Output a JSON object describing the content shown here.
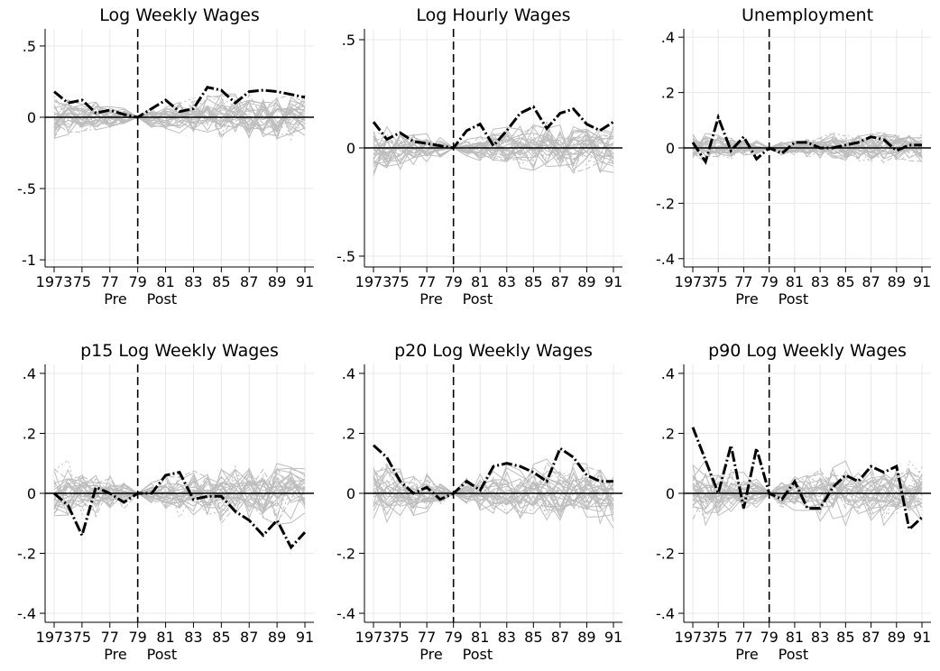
{
  "chart_data": [
    {
      "type": "line",
      "title": "Log Weekly Wages",
      "xlabel": "",
      "ylabel": "",
      "x": [
        1973,
        1974,
        1975,
        1976,
        1977,
        1978,
        1979,
        1980,
        1981,
        1982,
        1983,
        1984,
        1985,
        1986,
        1987,
        1988,
        1989,
        1990,
        1991
      ],
      "xticks": [
        "1973",
        "75",
        "77",
        "79",
        "81",
        "83",
        "85",
        "87",
        "89",
        "91"
      ],
      "xtick_values": [
        1973,
        1975,
        1977,
        1979,
        1981,
        1983,
        1985,
        1987,
        1989,
        1991
      ],
      "ylim": [
        -1.05,
        0.62
      ],
      "yticks": [
        ".5",
        "0",
        "-.5",
        "-1"
      ],
      "ytick_values": [
        0.5,
        0,
        -0.5,
        -1
      ],
      "period_labels": [
        "Pre",
        "Post"
      ],
      "event_year": 1979,
      "series": [
        {
          "values": [
            0.18,
            0.1,
            0.12,
            0.03,
            0.05,
            0.02,
            0.0,
            0.06,
            0.12,
            0.04,
            0.06,
            0.21,
            0.19,
            0.1,
            0.18,
            0.19,
            0.18,
            0.16,
            0.14
          ]
        }
      ],
      "donor_spread": 0.1
    },
    {
      "type": "line",
      "title": "Log Hourly Wages",
      "xlabel": "",
      "ylabel": "",
      "x": [
        1973,
        1974,
        1975,
        1976,
        1977,
        1978,
        1979,
        1980,
        1981,
        1982,
        1983,
        1984,
        1985,
        1986,
        1987,
        1988,
        1989,
        1990,
        1991
      ],
      "xticks": [
        "1973",
        "75",
        "77",
        "79",
        "81",
        "83",
        "85",
        "87",
        "89",
        "91"
      ],
      "xtick_values": [
        1973,
        1975,
        1977,
        1979,
        1981,
        1983,
        1985,
        1987,
        1989,
        1991
      ],
      "ylim": [
        -0.55,
        0.55
      ],
      "yticks": [
        ".5",
        "0",
        "-.5"
      ],
      "ytick_values": [
        0.5,
        0,
        -0.5
      ],
      "period_labels": [
        "Pre",
        "Post"
      ],
      "event_year": 1979,
      "series": [
        {
          "values": [
            0.12,
            0.04,
            0.07,
            0.03,
            0.02,
            0.01,
            0.0,
            0.08,
            0.11,
            0.01,
            0.08,
            0.16,
            0.19,
            0.09,
            0.16,
            0.18,
            0.11,
            0.08,
            0.12
          ]
        }
      ],
      "donor_spread": 0.08
    },
    {
      "type": "line",
      "title": "Unemployment",
      "xlabel": "",
      "ylabel": "",
      "x": [
        1973,
        1974,
        1975,
        1976,
        1977,
        1978,
        1979,
        1980,
        1981,
        1982,
        1983,
        1984,
        1985,
        1986,
        1987,
        1988,
        1989,
        1990,
        1991
      ],
      "xticks": [
        "1973",
        "75",
        "77",
        "79",
        "81",
        "83",
        "85",
        "87",
        "89",
        "91"
      ],
      "xtick_values": [
        1973,
        1975,
        1977,
        1979,
        1981,
        1983,
        1985,
        1987,
        1989,
        1991
      ],
      "ylim": [
        -0.43,
        0.43
      ],
      "yticks": [
        ".4",
        ".2",
        "0",
        "-.2",
        "-.4"
      ],
      "ytick_values": [
        0.4,
        0.2,
        0,
        -0.2,
        -0.4
      ],
      "period_labels": [
        "Pre",
        "Post"
      ],
      "event_year": 1979,
      "series": [
        {
          "values": [
            0.02,
            -0.05,
            0.11,
            -0.01,
            0.04,
            -0.04,
            0.0,
            -0.02,
            0.02,
            0.02,
            0.0,
            0.0,
            0.01,
            0.02,
            0.04,
            0.03,
            -0.01,
            0.01,
            0.01
          ]
        }
      ],
      "donor_spread": 0.04
    },
    {
      "type": "line",
      "title": "p15 Log Weekly Wages",
      "xlabel": "",
      "ylabel": "",
      "x": [
        1973,
        1974,
        1975,
        1976,
        1977,
        1978,
        1979,
        1980,
        1981,
        1982,
        1983,
        1984,
        1985,
        1986,
        1987,
        1988,
        1989,
        1990,
        1991
      ],
      "xticks": [
        "1973",
        "75",
        "77",
        "79",
        "81",
        "83",
        "85",
        "87",
        "89",
        "91"
      ],
      "xtick_values": [
        1973,
        1975,
        1977,
        1979,
        1981,
        1983,
        1985,
        1987,
        1989,
        1991
      ],
      "ylim": [
        -0.43,
        0.43
      ],
      "yticks": [
        ".4",
        ".2",
        "0",
        "-.2",
        "-.4"
      ],
      "ytick_values": [
        0.4,
        0.2,
        0,
        -0.2,
        -0.4
      ],
      "period_labels": [
        "Pre",
        "Post"
      ],
      "event_year": 1979,
      "series": [
        {
          "values": [
            0.0,
            -0.04,
            -0.14,
            0.02,
            0.0,
            -0.03,
            0.0,
            0.0,
            0.06,
            0.07,
            -0.02,
            -0.01,
            -0.01,
            -0.06,
            -0.09,
            -0.14,
            -0.09,
            -0.18,
            -0.13
          ]
        }
      ],
      "donor_spread": 0.07
    },
    {
      "type": "line",
      "title": "p20 Log Weekly Wages",
      "xlabel": "",
      "ylabel": "",
      "x": [
        1973,
        1974,
        1975,
        1976,
        1977,
        1978,
        1979,
        1980,
        1981,
        1982,
        1983,
        1984,
        1985,
        1986,
        1987,
        1988,
        1989,
        1990,
        1991
      ],
      "xticks": [
        "1973",
        "75",
        "77",
        "79",
        "81",
        "83",
        "85",
        "87",
        "89",
        "91"
      ],
      "xtick_values": [
        1973,
        1975,
        1977,
        1979,
        1981,
        1983,
        1985,
        1987,
        1989,
        1991
      ],
      "ylim": [
        -0.43,
        0.43
      ],
      "yticks": [
        ".4",
        ".2",
        "0",
        "-.2",
        "-.4"
      ],
      "ytick_values": [
        0.4,
        0.2,
        0,
        -0.2,
        -0.4
      ],
      "period_labels": [
        "Pre",
        "Post"
      ],
      "event_year": 1979,
      "series": [
        {
          "values": [
            0.16,
            0.12,
            0.04,
            0.0,
            0.02,
            -0.02,
            0.0,
            0.04,
            0.01,
            0.09,
            0.1,
            0.09,
            0.07,
            0.04,
            0.15,
            0.12,
            0.06,
            0.04,
            0.04
          ]
        }
      ],
      "donor_spread": 0.07
    },
    {
      "type": "line",
      "title": "p90 Log Weekly Wages",
      "xlabel": "",
      "ylabel": "",
      "x": [
        1973,
        1974,
        1975,
        1976,
        1977,
        1978,
        1979,
        1980,
        1981,
        1982,
        1983,
        1984,
        1985,
        1986,
        1987,
        1988,
        1989,
        1990,
        1991
      ],
      "xticks": [
        "1973",
        "75",
        "77",
        "79",
        "81",
        "83",
        "85",
        "87",
        "89",
        "91"
      ],
      "xtick_values": [
        1973,
        1975,
        1977,
        1979,
        1981,
        1983,
        1985,
        1987,
        1989,
        1991
      ],
      "ylim": [
        -0.43,
        0.43
      ],
      "yticks": [
        ".4",
        ".2",
        "0",
        "-.2",
        "-.4"
      ],
      "ytick_values": [
        0.4,
        0.2,
        0,
        -0.2,
        -0.4
      ],
      "period_labels": [
        "Pre",
        "Post"
      ],
      "event_year": 1979,
      "series": [
        {
          "values": [
            0.22,
            0.11,
            0.0,
            0.16,
            -0.05,
            0.15,
            0.0,
            -0.02,
            0.04,
            -0.05,
            -0.05,
            0.02,
            0.06,
            0.04,
            0.09,
            0.07,
            0.09,
            -0.12,
            -0.08
          ]
        }
      ],
      "donor_spread": 0.07
    }
  ]
}
